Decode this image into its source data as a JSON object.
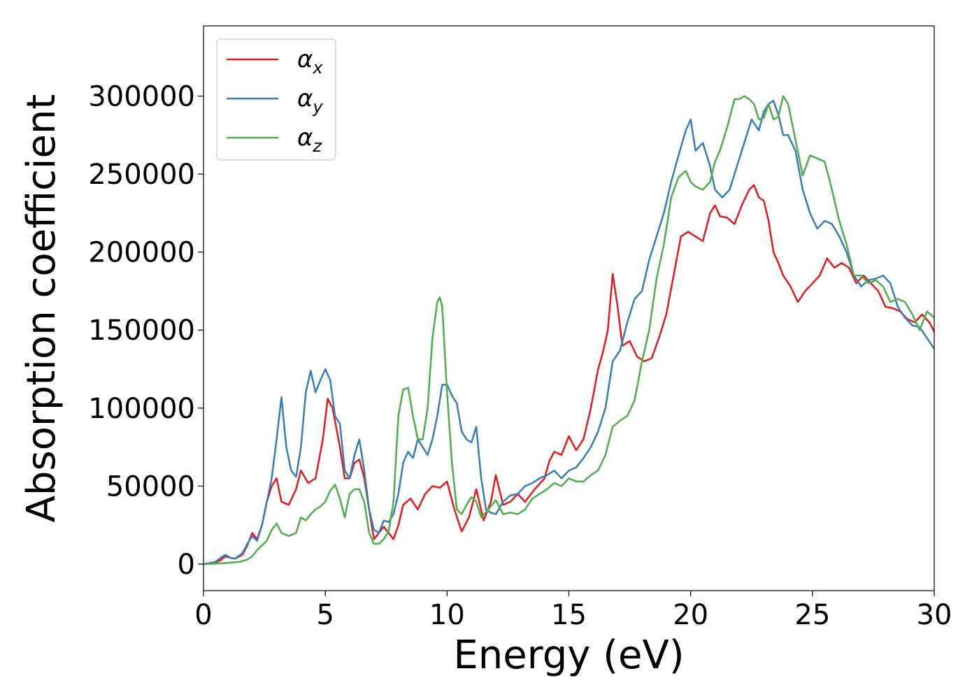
{
  "chart_data": {
    "type": "line",
    "title": "",
    "xlabel": "Energy (eV)",
    "ylabel": "Absorption coefficient",
    "xlim": [
      0,
      30
    ],
    "ylim": [
      -17000,
      345000
    ],
    "xticks": [
      0,
      5,
      10,
      15,
      20,
      25,
      30
    ],
    "yticks": [
      0,
      50000,
      100000,
      150000,
      200000,
      250000,
      300000
    ],
    "grid": false,
    "legend_position": "top-left",
    "series": [
      {
        "name": "αx",
        "legend_base": "α",
        "legend_sub": "x",
        "color": "#e41a1c",
        "x": [
          0,
          0.5,
          0.7,
          0.9,
          1.1,
          1.3,
          1.6,
          1.8,
          2.0,
          2.2,
          2.4,
          2.6,
          2.8,
          3.0,
          3.2,
          3.5,
          3.8,
          4.0,
          4.3,
          4.6,
          4.9,
          5.1,
          5.3,
          5.6,
          5.8,
          6.0,
          6.2,
          6.4,
          6.6,
          6.8,
          7.0,
          7.2,
          7.4,
          7.6,
          7.8,
          8.0,
          8.2,
          8.5,
          8.8,
          9.1,
          9.4,
          9.7,
          10.0,
          10.3,
          10.6,
          10.9,
          11.2,
          11.5,
          11.8,
          12.0,
          12.3,
          12.6,
          12.9,
          13.2,
          13.6,
          14.0,
          14.2,
          14.4,
          14.7,
          15.0,
          15.3,
          15.6,
          15.9,
          16.2,
          16.4,
          16.6,
          16.8,
          17.0,
          17.2,
          17.5,
          17.8,
          18.1,
          18.4,
          18.7,
          19.0,
          19.3,
          19.6,
          19.9,
          20.2,
          20.5,
          20.8,
          21.0,
          21.2,
          21.5,
          21.8,
          22.1,
          22.4,
          22.6,
          22.8,
          23.0,
          23.2,
          23.4,
          23.6,
          23.8,
          24.1,
          24.4,
          24.7,
          25.0,
          25.3,
          25.6,
          25.9,
          26.2,
          26.5,
          26.8,
          27.1,
          27.4,
          27.7,
          28.0,
          28.3,
          28.6,
          28.9,
          29.2,
          29.5,
          29.8,
          30.0
        ],
        "y": [
          0,
          1000,
          2500,
          5000,
          4000,
          3500,
          6000,
          12000,
          20000,
          16000,
          25000,
          40000,
          50000,
          55000,
          40000,
          38000,
          48000,
          60000,
          52000,
          55000,
          80000,
          106000,
          100000,
          75000,
          55000,
          55000,
          65000,
          67000,
          55000,
          35000,
          16000,
          20000,
          24000,
          20000,
          16000,
          25000,
          38000,
          42000,
          35000,
          45000,
          50000,
          49000,
          53000,
          35000,
          21000,
          30000,
          48000,
          28000,
          40000,
          57000,
          38000,
          40000,
          45000,
          40000,
          48000,
          55000,
          66000,
          72000,
          70000,
          82000,
          73000,
          80000,
          100000,
          125000,
          136000,
          150000,
          186000,
          165000,
          140000,
          143000,
          133000,
          130000,
          132000,
          145000,
          160000,
          185000,
          210000,
          213000,
          210000,
          207000,
          225000,
          230000,
          223000,
          222000,
          218000,
          230000,
          240000,
          243000,
          235000,
          233000,
          220000,
          200000,
          193000,
          185000,
          178000,
          168000,
          175000,
          180000,
          185000,
          196000,
          190000,
          193000,
          190000,
          180000,
          185000,
          180000,
          175000,
          165000,
          164000,
          162000,
          157000,
          155000,
          160000,
          155000,
          149000
        ]
      },
      {
        "name": "αy",
        "legend_base": "α",
        "legend_sub": "y",
        "color": "#377eb8",
        "x": [
          0,
          0.5,
          0.7,
          0.9,
          1.1,
          1.3,
          1.6,
          1.8,
          2.0,
          2.2,
          2.4,
          2.6,
          2.8,
          3.0,
          3.2,
          3.4,
          3.6,
          3.8,
          4.0,
          4.2,
          4.4,
          4.6,
          4.8,
          5.0,
          5.2,
          5.4,
          5.6,
          5.8,
          6.0,
          6.2,
          6.4,
          6.6,
          6.8,
          7.0,
          7.2,
          7.4,
          7.6,
          7.8,
          8.0,
          8.2,
          8.4,
          8.6,
          8.8,
          9.0,
          9.2,
          9.4,
          9.6,
          9.8,
          10.0,
          10.2,
          10.4,
          10.6,
          10.8,
          11.0,
          11.2,
          11.4,
          11.6,
          11.8,
          12.0,
          12.3,
          12.6,
          12.9,
          13.2,
          13.5,
          13.8,
          14.1,
          14.4,
          14.7,
          15.0,
          15.3,
          15.6,
          15.9,
          16.2,
          16.5,
          16.8,
          17.1,
          17.4,
          17.7,
          18.0,
          18.3,
          18.6,
          18.9,
          19.2,
          19.5,
          19.8,
          20.0,
          20.2,
          20.5,
          20.8,
          21.0,
          21.3,
          21.6,
          21.9,
          22.2,
          22.5,
          22.8,
          23.0,
          23.2,
          23.4,
          23.6,
          23.8,
          24.0,
          24.3,
          24.6,
          24.9,
          25.2,
          25.5,
          25.8,
          26.1,
          26.4,
          26.7,
          27.0,
          27.3,
          27.6,
          27.9,
          28.2,
          28.5,
          28.8,
          29.1,
          29.4,
          29.7,
          30.0
        ],
        "y": [
          0,
          1500,
          4000,
          6000,
          4000,
          3500,
          7000,
          13000,
          18000,
          15000,
          25000,
          40000,
          55000,
          80000,
          107000,
          75000,
          60000,
          56000,
          75000,
          110000,
          124000,
          110000,
          118000,
          125000,
          118000,
          95000,
          90000,
          60000,
          55000,
          70000,
          80000,
          60000,
          35000,
          22000,
          20000,
          28000,
          27000,
          32000,
          45000,
          65000,
          72000,
          68000,
          80000,
          75000,
          70000,
          80000,
          95000,
          115000,
          115000,
          108000,
          103000,
          85000,
          80000,
          78000,
          88000,
          55000,
          35000,
          33000,
          32000,
          40000,
          44000,
          45000,
          50000,
          52000,
          55000,
          57000,
          60000,
          55000,
          60000,
          62000,
          68000,
          75000,
          85000,
          100000,
          130000,
          137000,
          155000,
          170000,
          175000,
          195000,
          210000,
          225000,
          245000,
          262000,
          278000,
          285000,
          265000,
          270000,
          255000,
          240000,
          235000,
          240000,
          255000,
          270000,
          285000,
          278000,
          290000,
          295000,
          297000,
          288000,
          275000,
          275000,
          265000,
          240000,
          225000,
          215000,
          220000,
          218000,
          210000,
          200000,
          185000,
          178000,
          182000,
          183000,
          185000,
          180000,
          165000,
          158000,
          153000,
          152000,
          145000,
          138000
        ]
      },
      {
        "name": "αz",
        "legend_base": "α",
        "legend_sub": "z",
        "color": "#4daf4a",
        "x": [
          0,
          0.5,
          1.0,
          1.5,
          1.8,
          2.0,
          2.2,
          2.4,
          2.6,
          2.8,
          3.0,
          3.2,
          3.5,
          3.8,
          4.0,
          4.2,
          4.4,
          4.6,
          4.8,
          5.0,
          5.2,
          5.4,
          5.6,
          5.8,
          6.0,
          6.2,
          6.4,
          6.6,
          6.8,
          7.0,
          7.2,
          7.4,
          7.6,
          7.8,
          8.0,
          8.2,
          8.4,
          8.6,
          8.8,
          9.0,
          9.2,
          9.4,
          9.6,
          9.7,
          9.8,
          10.0,
          10.2,
          10.4,
          10.6,
          10.8,
          11.0,
          11.2,
          11.4,
          11.7,
          12.0,
          12.3,
          12.6,
          12.9,
          13.2,
          13.5,
          13.8,
          14.1,
          14.4,
          14.7,
          15.0,
          15.3,
          15.6,
          15.9,
          16.2,
          16.5,
          16.8,
          17.1,
          17.4,
          17.7,
          18.0,
          18.3,
          18.6,
          18.9,
          19.2,
          19.5,
          19.8,
          20.0,
          20.2,
          20.5,
          20.8,
          21.0,
          21.2,
          21.5,
          21.8,
          22.0,
          22.2,
          22.4,
          22.6,
          22.8,
          23.0,
          23.2,
          23.4,
          23.6,
          23.8,
          24.0,
          24.3,
          24.6,
          24.9,
          25.2,
          25.5,
          25.8,
          26.1,
          26.4,
          26.7,
          27.0,
          27.3,
          27.6,
          27.9,
          28.2,
          28.5,
          28.8,
          29.1,
          29.4,
          29.7,
          30.0
        ],
        "y": [
          0,
          300,
          800,
          1500,
          3000,
          5000,
          9000,
          12000,
          15000,
          22000,
          26000,
          20000,
          18000,
          20000,
          30000,
          28000,
          32000,
          35000,
          37000,
          40000,
          47000,
          51000,
          42000,
          30000,
          45000,
          48000,
          48000,
          40000,
          20000,
          13000,
          13000,
          16000,
          21000,
          40000,
          95000,
          112000,
          113000,
          95000,
          80000,
          80000,
          100000,
          145000,
          168000,
          171000,
          165000,
          110000,
          65000,
          35000,
          32000,
          38000,
          43000,
          40000,
          30000,
          35000,
          41000,
          32000,
          33000,
          32000,
          35000,
          42000,
          45000,
          48000,
          52000,
          50000,
          55000,
          53000,
          53000,
          57000,
          60000,
          70000,
          88000,
          92000,
          95000,
          105000,
          130000,
          150000,
          183000,
          205000,
          235000,
          248000,
          252000,
          245000,
          242000,
          240000,
          245000,
          258000,
          265000,
          280000,
          298000,
          298000,
          300000,
          298000,
          295000,
          285000,
          286000,
          295000,
          285000,
          287000,
          300000,
          295000,
          272000,
          249000,
          262000,
          260000,
          258000,
          240000,
          220000,
          205000,
          185000,
          185000,
          180000,
          182000,
          178000,
          168000,
          170000,
          168000,
          160000,
          150000,
          162000,
          158000
        ]
      }
    ]
  }
}
